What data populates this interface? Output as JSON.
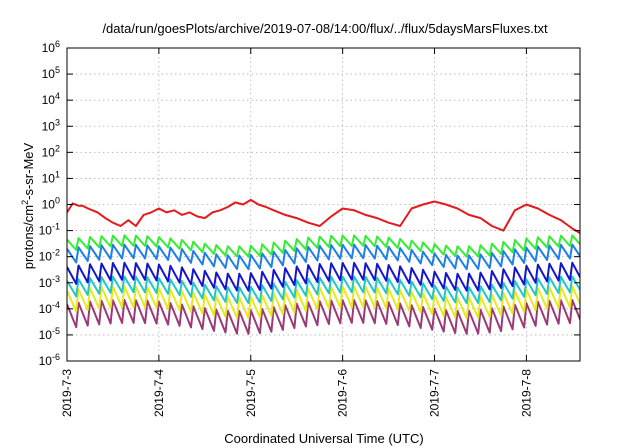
{
  "chart_data": {
    "type": "line",
    "title": "/data/run/goesPlots/archive/2019-07-08/14:00/flux/../flux/5daysMarsFluxes.txt",
    "xlabel": "Coordinated Universal Time (UTC)",
    "ylabel": {
      "base": "protons/cm",
      "sup": "2",
      "rest": "-s-sr-MeV"
    },
    "x_range": [
      "2019-07-03T00:00",
      "2019-07-08T14:00"
    ],
    "x_ticks": [
      {
        "t": "2019-07-03T00:00",
        "label": "2019-7-3"
      },
      {
        "t": "2019-07-04T00:00",
        "label": "2019-7-4"
      },
      {
        "t": "2019-07-05T00:00",
        "label": "2019-7-5"
      },
      {
        "t": "2019-07-06T00:00",
        "label": "2019-7-6"
      },
      {
        "t": "2019-07-07T00:00",
        "label": "2019-7-7"
      },
      {
        "t": "2019-07-08T00:00",
        "label": "2019-7-8"
      }
    ],
    "y_scale": "log",
    "y_range": [
      1e-06,
      1000000.0
    ],
    "y_ticks": [
      {
        "v": 1e-06,
        "base": "10",
        "exp": "-6"
      },
      {
        "v": 1e-05,
        "base": "10",
        "exp": "-5"
      },
      {
        "v": 0.0001,
        "base": "10",
        "exp": "-4"
      },
      {
        "v": 0.001,
        "base": "10",
        "exp": "-3"
      },
      {
        "v": 0.01,
        "base": "10",
        "exp": "-2"
      },
      {
        "v": 0.1,
        "base": "10",
        "exp": "-1"
      },
      {
        "v": 1,
        "base": "10",
        "exp": "0"
      },
      {
        "v": 10,
        "base": "10",
        "exp": "1"
      },
      {
        "v": 100,
        "base": "10",
        "exp": "2"
      },
      {
        "v": 1000,
        "base": "10",
        "exp": "3"
      },
      {
        "v": 10000,
        "base": "10",
        "exp": "4"
      },
      {
        "v": 100000,
        "base": "10",
        "exp": "5"
      },
      {
        "v": 1000000,
        "base": "10",
        "exp": "6"
      }
    ],
    "grid": true,
    "legend": "none",
    "series": [
      {
        "color": "#e41a1c",
        "x": [
          "2019-07-03T00:00",
          "2019-07-03T01:30",
          "2019-07-03T03:00",
          "2019-07-03T04:00",
          "2019-07-03T05:30",
          "2019-07-03T08:00",
          "2019-07-03T10:00",
          "2019-07-03T12:00",
          "2019-07-03T14:00",
          "2019-07-03T16:00",
          "2019-07-03T18:00",
          "2019-07-03T20:00",
          "2019-07-03T22:00",
          "2019-07-04T00:00",
          "2019-07-04T02:00",
          "2019-07-04T04:00",
          "2019-07-04T06:00",
          "2019-07-04T08:00",
          "2019-07-04T10:00",
          "2019-07-04T12:00",
          "2019-07-04T14:00",
          "2019-07-04T16:00",
          "2019-07-04T18:00",
          "2019-07-04T20:00",
          "2019-07-04T22:00",
          "2019-07-05T00:00",
          "2019-07-05T02:00",
          "2019-07-05T04:00",
          "2019-07-05T06:00",
          "2019-07-05T09:00",
          "2019-07-05T12:00",
          "2019-07-05T15:00",
          "2019-07-05T18:00",
          "2019-07-05T21:00",
          "2019-07-06T00:00",
          "2019-07-06T03:00",
          "2019-07-06T06:00",
          "2019-07-06T09:00",
          "2019-07-06T12:00",
          "2019-07-06T15:00",
          "2019-07-06T18:00",
          "2019-07-06T21:00",
          "2019-07-07T00:00",
          "2019-07-07T03:00",
          "2019-07-07T06:00",
          "2019-07-07T09:00",
          "2019-07-07T12:00",
          "2019-07-07T15:00",
          "2019-07-07T18:00",
          "2019-07-07T21:00",
          "2019-07-08T00:00",
          "2019-07-08T03:00",
          "2019-07-08T06:00",
          "2019-07-08T09:00",
          "2019-07-08T12:00",
          "2019-07-08T14:00"
        ],
        "y": [
          0.5,
          1.1,
          0.9,
          0.9,
          0.7,
          0.5,
          0.3,
          0.2,
          0.15,
          0.25,
          0.15,
          0.4,
          0.5,
          0.7,
          0.5,
          0.6,
          0.4,
          0.5,
          0.35,
          0.3,
          0.5,
          0.6,
          0.8,
          1.2,
          1.0,
          1.5,
          1.0,
          0.8,
          0.6,
          0.4,
          0.3,
          0.2,
          0.15,
          0.35,
          0.7,
          0.6,
          0.4,
          0.3,
          0.2,
          0.15,
          0.7,
          1.0,
          1.3,
          1.0,
          0.7,
          0.4,
          0.3,
          0.15,
          0.1,
          0.6,
          1.0,
          0.7,
          0.4,
          0.25,
          0.12,
          0.08
        ]
      },
      {
        "color": "#33ee33",
        "teeth": {
          "top": 0.045,
          "bottom": 0.018
        }
      },
      {
        "color": "#1f7fe6",
        "teeth": {
          "top": 0.02,
          "bottom": 0.006
        }
      },
      {
        "color": "#1515cc",
        "teeth": {
          "top": 0.004,
          "bottom": 0.0009
        }
      },
      {
        "color": "#22c6c6",
        "teeth": {
          "top": 0.0012,
          "bottom": 0.0003
        }
      },
      {
        "color": "#e8e820",
        "teeth": {
          "top": 0.0005,
          "bottom": 8e-05
        }
      },
      {
        "color": "#9a3a78",
        "teeth": {
          "top": 0.00015,
          "bottom": 2e-05
        }
      }
    ]
  }
}
